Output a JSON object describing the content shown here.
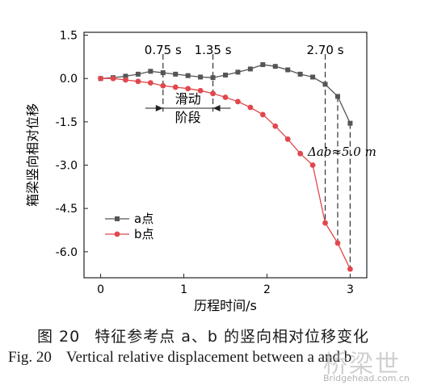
{
  "chart_data": {
    "type": "line",
    "title": "",
    "xlabel": "历程时间/s",
    "ylabel": "箱梁竖向相对位移",
    "xlim": [
      -0.2,
      3.2
    ],
    "ylim": [
      -6.9,
      1.6
    ],
    "xticks": [
      0,
      1,
      2,
      3
    ],
    "xtick_labels": [
      "0",
      "1",
      "2",
      "3"
    ],
    "yticks": [
      1.5,
      0.0,
      -1.5,
      -3.0,
      -4.5,
      -6.0
    ],
    "ytick_labels": [
      "1.5",
      "0.0",
      "-1.5",
      "-3.0",
      "-4.5",
      "-6.0"
    ],
    "grid": false,
    "legend_position": "bottom-left",
    "series": [
      {
        "name": "a点",
        "color": "#555555",
        "marker": "square",
        "x": [
          0,
          0.15,
          0.3,
          0.45,
          0.6,
          0.75,
          0.9,
          1.05,
          1.2,
          1.35,
          1.5,
          1.65,
          1.8,
          1.95,
          2.1,
          2.25,
          2.4,
          2.55,
          2.7,
          2.85,
          3.0
        ],
        "y": [
          0.0,
          0.03,
          0.08,
          0.15,
          0.25,
          0.2,
          0.15,
          0.1,
          0.05,
          0.03,
          0.12,
          0.22,
          0.33,
          0.48,
          0.42,
          0.3,
          0.15,
          0.05,
          -0.2,
          -0.62,
          -1.55
        ]
      },
      {
        "name": "b点",
        "color": "#e0484e",
        "marker": "circle",
        "x": [
          0,
          0.15,
          0.3,
          0.45,
          0.6,
          0.75,
          0.9,
          1.05,
          1.2,
          1.35,
          1.5,
          1.65,
          1.8,
          1.95,
          2.1,
          2.25,
          2.4,
          2.55,
          2.7,
          2.85,
          3.0
        ],
        "y": [
          0.0,
          0.0,
          -0.05,
          -0.1,
          -0.15,
          -0.25,
          -0.3,
          -0.35,
          -0.42,
          -0.52,
          -0.65,
          -0.8,
          -1.0,
          -1.25,
          -1.65,
          -2.1,
          -2.6,
          -3.0,
          -5.0,
          -5.7,
          -6.6
        ]
      }
    ],
    "annotations": {
      "vlines": [
        {
          "x": 0.75,
          "label": "0.75 s"
        },
        {
          "x": 1.35,
          "label": "1.35 s"
        },
        {
          "x": 2.7,
          "label": "2.70 s"
        },
        {
          "x": 2.85,
          "label": ""
        },
        {
          "x": 3.0,
          "label": ""
        }
      ],
      "slide_label": [
        "滑动",
        "阶段"
      ],
      "delta_label": "Δab≈5.0 m"
    }
  },
  "captions": {
    "zh_label": "图 20",
    "zh_text": "特征参考点 a、b 的竖向相对位移变化",
    "en_label": "Fig. 20",
    "en_text": "Vertical relative displacement between a and b"
  },
  "watermark": {
    "logo_text": "桥梁世",
    "url": "Bridgehead.com.cn"
  }
}
